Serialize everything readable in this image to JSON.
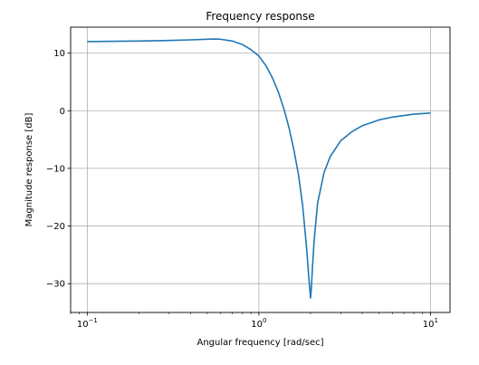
{
  "chart_data": {
    "type": "line",
    "title": "Frequency response",
    "xlabel": "Angular frequency [rad/sec]",
    "ylabel": "Magnitude response [dB]",
    "x_scale": "log",
    "xlim": [
      0.08,
      13
    ],
    "ylim": [
      -35,
      14.5
    ],
    "grid": true,
    "x_ticks": [
      {
        "value": 0.1,
        "base": "10",
        "exp": "−1"
      },
      {
        "value": 1,
        "base": "10",
        "exp": "0"
      },
      {
        "value": 10,
        "base": "10",
        "exp": "1"
      }
    ],
    "y_ticks": [
      {
        "value": 10,
        "label": "10"
      },
      {
        "value": 0,
        "label": "0"
      },
      {
        "value": -10,
        "label": "−10"
      },
      {
        "value": -20,
        "label": "−20"
      },
      {
        "value": -30,
        "label": "−30"
      }
    ],
    "series": [
      {
        "color": "#1f77b4",
        "x": [
          0.1,
          0.2,
          0.3,
          0.4,
          0.5,
          0.55,
          0.6,
          0.7,
          0.8,
          0.9,
          1.0,
          1.1,
          1.2,
          1.3,
          1.4,
          1.5,
          1.6,
          1.7,
          1.8,
          1.9,
          1.95,
          1.98,
          2.0,
          2.02,
          2.05,
          2.1,
          2.2,
          2.4,
          2.6,
          3.0,
          3.5,
          4.0,
          5.0,
          6.0,
          8.0,
          10.0
        ],
        "y": [
          12.0,
          12.1,
          12.2,
          12.3,
          12.4,
          12.45,
          12.4,
          12.1,
          11.5,
          10.6,
          9.5,
          7.8,
          5.7,
          3.2,
          0.3,
          -3.0,
          -6.8,
          -11.0,
          -16.5,
          -24.0,
          -28.5,
          -31.0,
          -32.5,
          -31.0,
          -27.5,
          -22.5,
          -16.0,
          -10.7,
          -8.0,
          -5.2,
          -3.6,
          -2.6,
          -1.6,
          -1.1,
          -0.6,
          -0.4
        ]
      }
    ]
  }
}
